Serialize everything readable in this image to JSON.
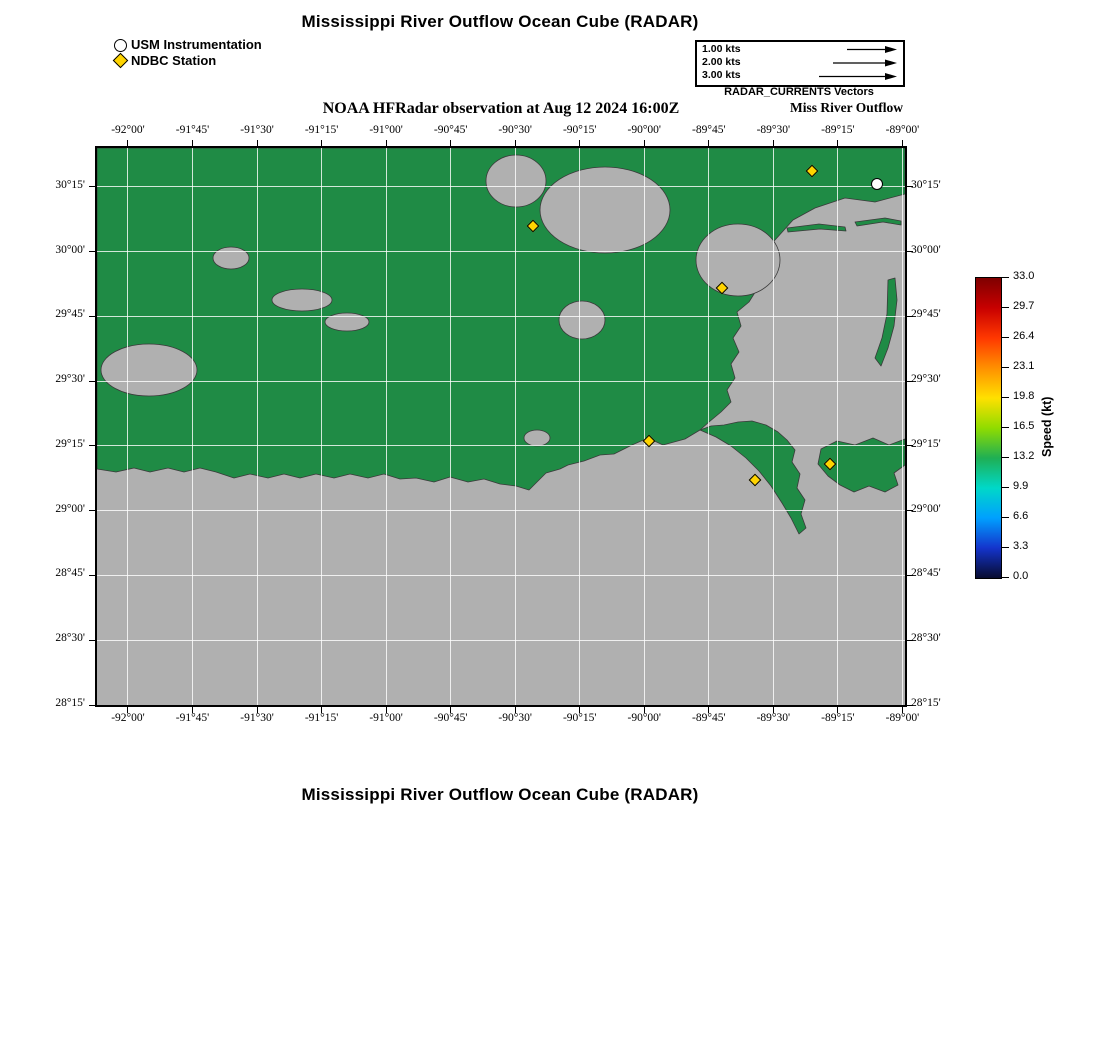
{
  "titles": {
    "top": "Mississippi River Outflow Ocean Cube (RADAR)",
    "subtitle": "NOAA HFRadar observation at Aug 12 2024 16:00Z",
    "bottom": "Mississippi River Outflow Ocean Cube (RADAR)"
  },
  "legend": {
    "usm": "USM Instrumentation",
    "ndbc": "NDBC Station"
  },
  "vector_legend": {
    "rows": [
      {
        "label": "1.00 kts",
        "speed_kts": 1.0
      },
      {
        "label": "2.00 kts",
        "speed_kts": 2.0
      },
      {
        "label": "3.00 kts",
        "speed_kts": 3.0
      }
    ],
    "caption": "RADAR_CURRENTS Vectors",
    "subcaption": "Miss River Outflow"
  },
  "chart_data": {
    "type": "map",
    "title": "NOAA HFRadar observation at Aug 12 2024 16:00Z",
    "region": "Mississippi River outflow / southeastern Louisiana coast",
    "extent": {
      "lon_min": -92.12,
      "lon_max": -88.99,
      "lat_min": 28.25,
      "lat_max": 30.4
    },
    "x_axis": {
      "unit": "longitude (deg, min)"
    },
    "y_axis": {
      "unit": "latitude (deg, min)"
    },
    "x_ticks": [
      {
        "lon": -92.0,
        "label": "-92°00'"
      },
      {
        "lon": -91.75,
        "label": "-91°45'"
      },
      {
        "lon": -91.5,
        "label": "-91°30'"
      },
      {
        "lon": -91.25,
        "label": "-91°15'"
      },
      {
        "lon": -91.0,
        "label": "-91°00'"
      },
      {
        "lon": -90.75,
        "label": "-90°45'"
      },
      {
        "lon": -90.5,
        "label": "-90°30'"
      },
      {
        "lon": -90.25,
        "label": "-90°15'"
      },
      {
        "lon": -90.0,
        "label": "-90°00'"
      },
      {
        "lon": -89.75,
        "label": "-89°45'"
      },
      {
        "lon": -89.5,
        "label": "-89°30'"
      },
      {
        "lon": -89.25,
        "label": "-89°15'"
      },
      {
        "lon": -89.0,
        "label": "-89°00'"
      }
    ],
    "y_ticks": [
      {
        "lat": 30.25,
        "label": "30°15'"
      },
      {
        "lat": 30.0,
        "label": "30°00'"
      },
      {
        "lat": 29.75,
        "label": "29°45'"
      },
      {
        "lat": 29.5,
        "label": "29°30'"
      },
      {
        "lat": 29.25,
        "label": "29°15'"
      },
      {
        "lat": 29.0,
        "label": "29°00'"
      },
      {
        "lat": 28.75,
        "label": "28°45'"
      },
      {
        "lat": 28.5,
        "label": "28°30'"
      },
      {
        "lat": 28.25,
        "label": "28°15'"
      }
    ],
    "stations": {
      "usm_instrumentation": [
        {
          "lon": -89.1,
          "lat": 30.26
        }
      ],
      "ndbc": [
        {
          "lon": -90.43,
          "lat": 30.1
        },
        {
          "lon": -89.35,
          "lat": 30.31
        },
        {
          "lon": -89.7,
          "lat": 29.86
        },
        {
          "lon": -89.98,
          "lat": 29.27
        },
        {
          "lon": -89.57,
          "lat": 29.12
        },
        {
          "lon": -89.28,
          "lat": 29.18
        }
      ]
    },
    "colorbar": {
      "label": "Speed (kt)",
      "min": 0.0,
      "max": 33.0,
      "tick_labels": [
        "33.0",
        "29.7",
        "26.4",
        "23.1",
        "19.8",
        "16.5",
        "13.2",
        "9.9",
        "6.6",
        "3.3",
        "0.0"
      ],
      "stops_top_to_bottom": [
        "#7f0000",
        "#c80000",
        "#ff3800",
        "#ff9000",
        "#ffe000",
        "#90dc00",
        "#1faf54",
        "#00d8c8",
        "#00a0ff",
        "#1434cc",
        "#080c30"
      ]
    },
    "colors": {
      "land": "#1f8b45",
      "water": "#b0b0b0",
      "ndbc_marker": "#ffd400",
      "usm_marker": "#ffffff"
    }
  }
}
